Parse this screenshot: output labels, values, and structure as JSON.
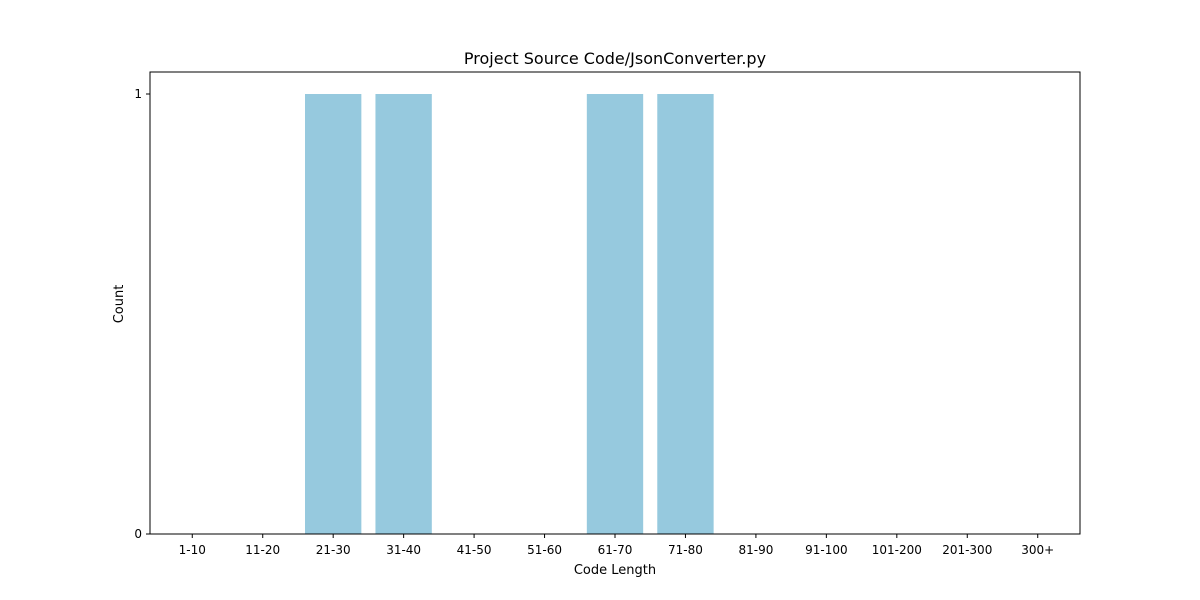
{
  "chart_data": {
    "type": "bar",
    "title": "Project Source Code/JsonConverter.py",
    "xlabel": "Code Length",
    "ylabel": "Count",
    "categories": [
      "1-10",
      "11-20",
      "21-30",
      "31-40",
      "41-50",
      "51-60",
      "61-70",
      "71-80",
      "81-90",
      "91-100",
      "101-200",
      "201-300",
      "300+"
    ],
    "values": [
      0,
      0,
      1,
      1,
      0,
      0,
      1,
      1,
      0,
      0,
      0,
      0,
      0
    ],
    "ylim": [
      0,
      1.05
    ],
    "yticks": [
      0,
      1
    ],
    "grid": false,
    "legend": "none",
    "bar_color": "#96c9de"
  }
}
